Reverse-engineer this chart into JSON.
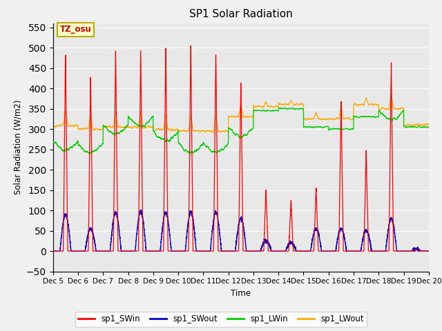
{
  "title": "SP1 Solar Radiation",
  "ylabel": "Solar Radiation (W/m2)",
  "xlabel": "Time",
  "ylim": [
    -50,
    560
  ],
  "yticks": [
    -50,
    0,
    50,
    100,
    150,
    200,
    250,
    300,
    350,
    400,
    450,
    500,
    550
  ],
  "xtick_labels": [
    "Dec 5",
    "Dec 6",
    "Dec 7",
    "Dec 8",
    "Dec 9",
    "Dec 10",
    "Dec 11",
    "Dec 12",
    "Dec 13",
    "Dec 14",
    "Dec 15",
    "Dec 16",
    "Dec 17",
    "Dec 18",
    "Dec 19",
    "Dec 20"
  ],
  "annotation_text": "TZ_osu",
  "annotation_color": "#cc0000",
  "annotation_bg": "#ffffcc",
  "annotation_border": "#bbaa00",
  "colors": {
    "sp1_SWin": "#ff0000",
    "sp1_SWout": "#0000cc",
    "sp1_LWin": "#00cc00",
    "sp1_LWout": "#ffaa00"
  },
  "legend_labels": [
    "sp1_SWin",
    "sp1_SWout",
    "sp1_LWin",
    "sp1_LWout"
  ],
  "fig_facecolor": "#f0f0f0",
  "ax_facecolor": "#e8e8e8",
  "sw_peaks": [
    490,
    435,
    500,
    500,
    505,
    510,
    490,
    420,
    150,
    125,
    155,
    375,
    250,
    470,
    5
  ],
  "sw_out_peaks": [
    90,
    55,
    95,
    97,
    95,
    95,
    95,
    80,
    25,
    20,
    55,
    55,
    50,
    80,
    5
  ],
  "lw_in_base": [
    270,
    265,
    310,
    330,
    295,
    265,
    265,
    305,
    345,
    350,
    305,
    300,
    330,
    345,
    305
  ],
  "lw_out_base": [
    308,
    300,
    305,
    305,
    298,
    295,
    295,
    330,
    355,
    360,
    325,
    325,
    360,
    350,
    310
  ]
}
